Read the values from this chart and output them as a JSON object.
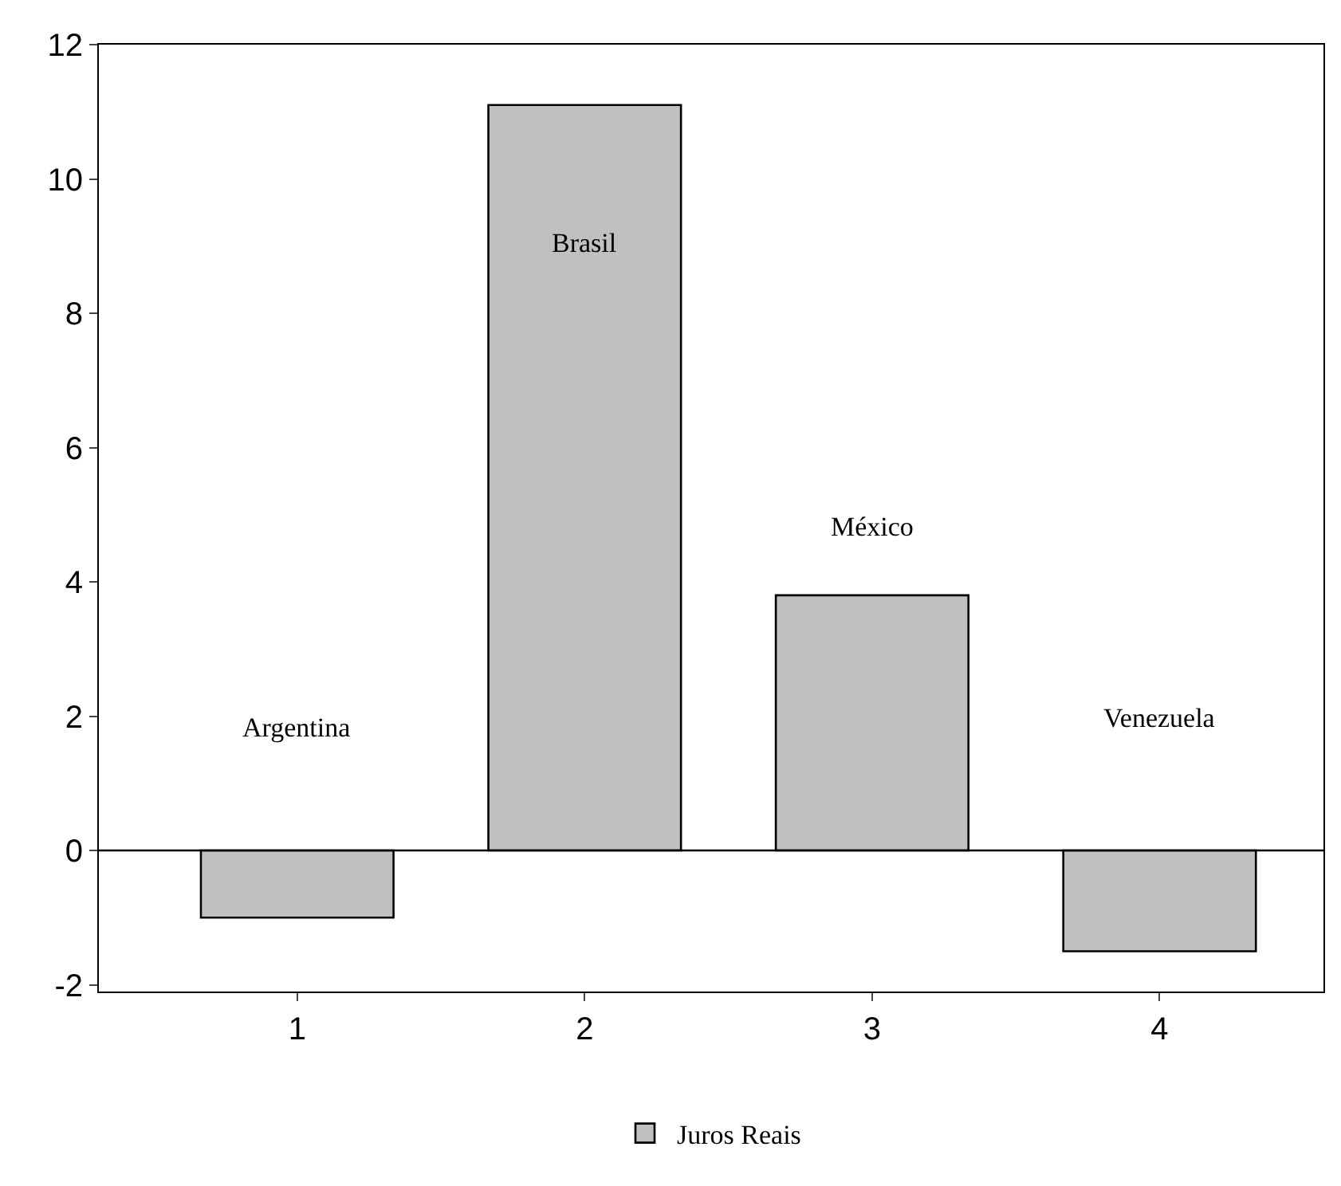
{
  "chart_data": {
    "type": "bar",
    "categories": [
      "1",
      "2",
      "3",
      "4"
    ],
    "series": [
      {
        "name": "Juros Reais",
        "color": "#c0c0c0",
        "values": [
          -1.0,
          11.1,
          3.8,
          -1.5
        ]
      }
    ],
    "ylim": [
      -2.1,
      12
    ],
    "yticks": [
      -2,
      0,
      2,
      4,
      6,
      8,
      10,
      12
    ],
    "legend": "bottom",
    "ref_lines": [
      {
        "axis": "y",
        "value": 0,
        "color": "#000000"
      }
    ],
    "annotations": [
      "Argentina",
      "Brasil",
      "México",
      "Venezuela"
    ]
  }
}
